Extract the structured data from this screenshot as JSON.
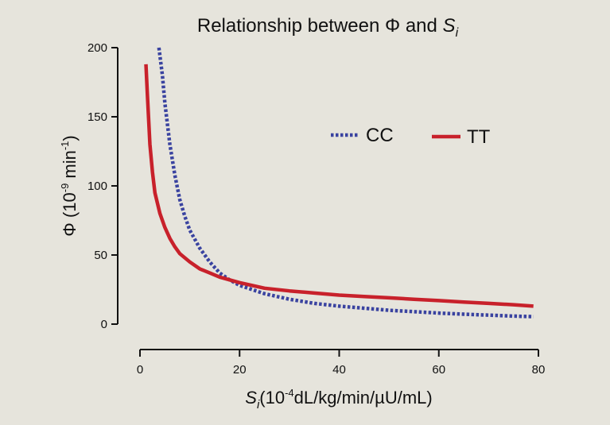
{
  "chart_data": {
    "type": "line",
    "title": {
      "prefix": "Relationship between Φ and ",
      "var": "S",
      "sub": "i"
    },
    "xlabel": {
      "var": "S",
      "sub": "i",
      "pre": "(10",
      "sup": "-4",
      "post": "dL/kg/min/µU/mL)"
    },
    "ylabel": {
      "pre": "Φ (10",
      "sup": "-9",
      "mid": " min",
      "sup2": "-1",
      "post": ")"
    },
    "xlim": [
      0,
      80
    ],
    "ylim": [
      0,
      200
    ],
    "xticks": [
      0,
      20,
      40,
      60,
      80
    ],
    "yticks": [
      0,
      50,
      100,
      150,
      200
    ],
    "legend": "top-right",
    "grid": false,
    "series": [
      {
        "name": "CC",
        "color": "#3a43a0",
        "style": "dotted",
        "x": [
          3.8,
          4.5,
          5,
          6,
          7,
          8,
          9,
          10,
          12,
          14,
          16,
          18,
          20,
          25,
          30,
          35,
          40,
          45,
          50,
          55,
          60,
          65,
          70,
          75,
          79
        ],
        "y": [
          200,
          180,
          160,
          130,
          108,
          90,
          78,
          68,
          55,
          45,
          37,
          32,
          28,
          22,
          18,
          15,
          13,
          11.5,
          10,
          9,
          8,
          7.2,
          6.5,
          5.8,
          5.4
        ]
      },
      {
        "name": "TT",
        "color": "#c8212b",
        "style": "solid",
        "x": [
          1.2,
          1.5,
          2,
          2.5,
          3,
          4,
          5,
          6,
          7,
          8,
          10,
          12,
          14,
          16,
          18,
          20,
          25,
          30,
          35,
          40,
          45,
          50,
          55,
          60,
          65,
          70,
          75,
          79
        ],
        "y": [
          188,
          165,
          130,
          110,
          95,
          80,
          70,
          62,
          56,
          51,
          45,
          40,
          37,
          34,
          32,
          30,
          26,
          24,
          22.5,
          21,
          20,
          19,
          18,
          17,
          16,
          15,
          14,
          13
        ]
      }
    ]
  }
}
